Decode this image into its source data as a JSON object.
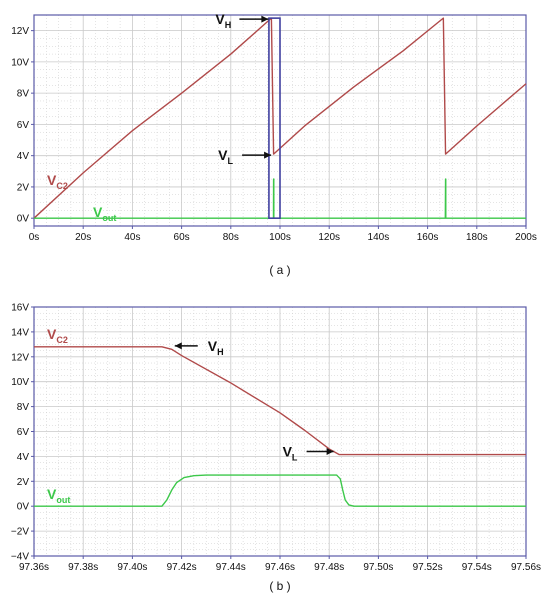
{
  "colors": {
    "frame": "#5a5aa8",
    "grid": "#c9c9c9",
    "vc2": "#b04a4a",
    "vout": "#3cc84a",
    "window": "#4040a0",
    "arrow": "#111111"
  },
  "chart_data": [
    {
      "type": "line",
      "caption": "( a )",
      "xlim": [
        0,
        200
      ],
      "ylim": [
        -0.5,
        13
      ],
      "x_ticks": [
        0,
        20,
        40,
        60,
        80,
        100,
        120,
        140,
        160,
        180,
        200
      ],
      "x_tick_labels": [
        "0s",
        "20s",
        "40s",
        "60s",
        "80s",
        "100s",
        "120s",
        "140s",
        "160s",
        "180s",
        "200s"
      ],
      "y_ticks": [
        0,
        2,
        4,
        6,
        8,
        10,
        12
      ],
      "y_tick_labels": [
        "0V",
        "2V",
        "4V",
        "6V",
        "8V",
        "10V",
        "12V"
      ],
      "grid": true,
      "series": [
        {
          "name": "V",
          "name_sub": "C2",
          "color": "#b04a4a",
          "x": [
            0,
            20,
            40,
            60,
            80,
            96.5,
            97.4,
            110,
            130,
            150,
            166.4,
            167.3,
            180,
            200
          ],
          "y": [
            0,
            2.9,
            5.6,
            8.0,
            10.5,
            12.8,
            4.1,
            5.9,
            8.4,
            10.7,
            12.8,
            4.1,
            5.9,
            8.6
          ]
        },
        {
          "name": "V",
          "name_sub": "out",
          "color": "#3cc84a",
          "x": [
            0,
            97.35,
            97.4,
            97.48,
            97.5,
            167.2,
            167.3,
            167.38,
            167.4,
            200
          ],
          "y": [
            0,
            0,
            2.5,
            2.5,
            0,
            0,
            2.5,
            2.5,
            0,
            0
          ]
        }
      ],
      "window": {
        "x": [
          95.5,
          100
        ],
        "y": [
          0,
          12.8
        ]
      },
      "annotations": [
        {
          "text": "V",
          "sub": "H",
          "x": 96.5,
          "y": 12.8
        },
        {
          "text": "V",
          "sub": "L",
          "x": 97.6,
          "y": 4.1
        }
      ]
    },
    {
      "type": "line",
      "caption": "( b )",
      "xlim": [
        97.36,
        97.56
      ],
      "ylim": [
        -4,
        16
      ],
      "x_ticks": [
        97.36,
        97.38,
        97.4,
        97.42,
        97.44,
        97.46,
        97.48,
        97.5,
        97.52,
        97.54,
        97.56
      ],
      "x_tick_labels": [
        "97.36s",
        "97.38s",
        "97.40s",
        "97.42s",
        "97.44s",
        "97.46s",
        "97.48s",
        "97.50s",
        "97.52s",
        "97.54s",
        "97.56s"
      ],
      "y_ticks": [
        -4,
        -2,
        0,
        2,
        4,
        6,
        8,
        10,
        12,
        14,
        16
      ],
      "y_tick_labels": [
        "−4V",
        "−2V",
        "0V",
        "2V",
        "4V",
        "6V",
        "8V",
        "10V",
        "12V",
        "14V",
        "16V"
      ],
      "grid": true,
      "series": [
        {
          "name": "V",
          "name_sub": "C2",
          "color": "#b04a4a",
          "x": [
            97.36,
            97.412,
            97.416,
            97.42,
            97.44,
            97.46,
            97.47,
            97.48,
            97.484,
            97.56
          ],
          "y": [
            12.8,
            12.8,
            12.6,
            12.1,
            9.9,
            7.5,
            6.1,
            4.6,
            4.15,
            4.15
          ]
        },
        {
          "name": "V",
          "name_sub": "out",
          "color": "#3cc84a",
          "x": [
            97.36,
            97.412,
            97.414,
            97.416,
            97.418,
            97.421,
            97.425,
            97.43,
            97.483,
            97.4845,
            97.4855,
            97.4865,
            97.488,
            97.49,
            97.56
          ],
          "y": [
            0,
            0,
            0.5,
            1.3,
            1.9,
            2.3,
            2.45,
            2.5,
            2.5,
            2.2,
            1.3,
            0.5,
            0.1,
            0,
            0
          ]
        }
      ],
      "annotations": [
        {
          "text": "V",
          "sub": "H",
          "x": 97.416,
          "y": 12.8
        },
        {
          "text": "V",
          "sub": "L",
          "x": 97.483,
          "y": 4.15
        }
      ]
    }
  ]
}
